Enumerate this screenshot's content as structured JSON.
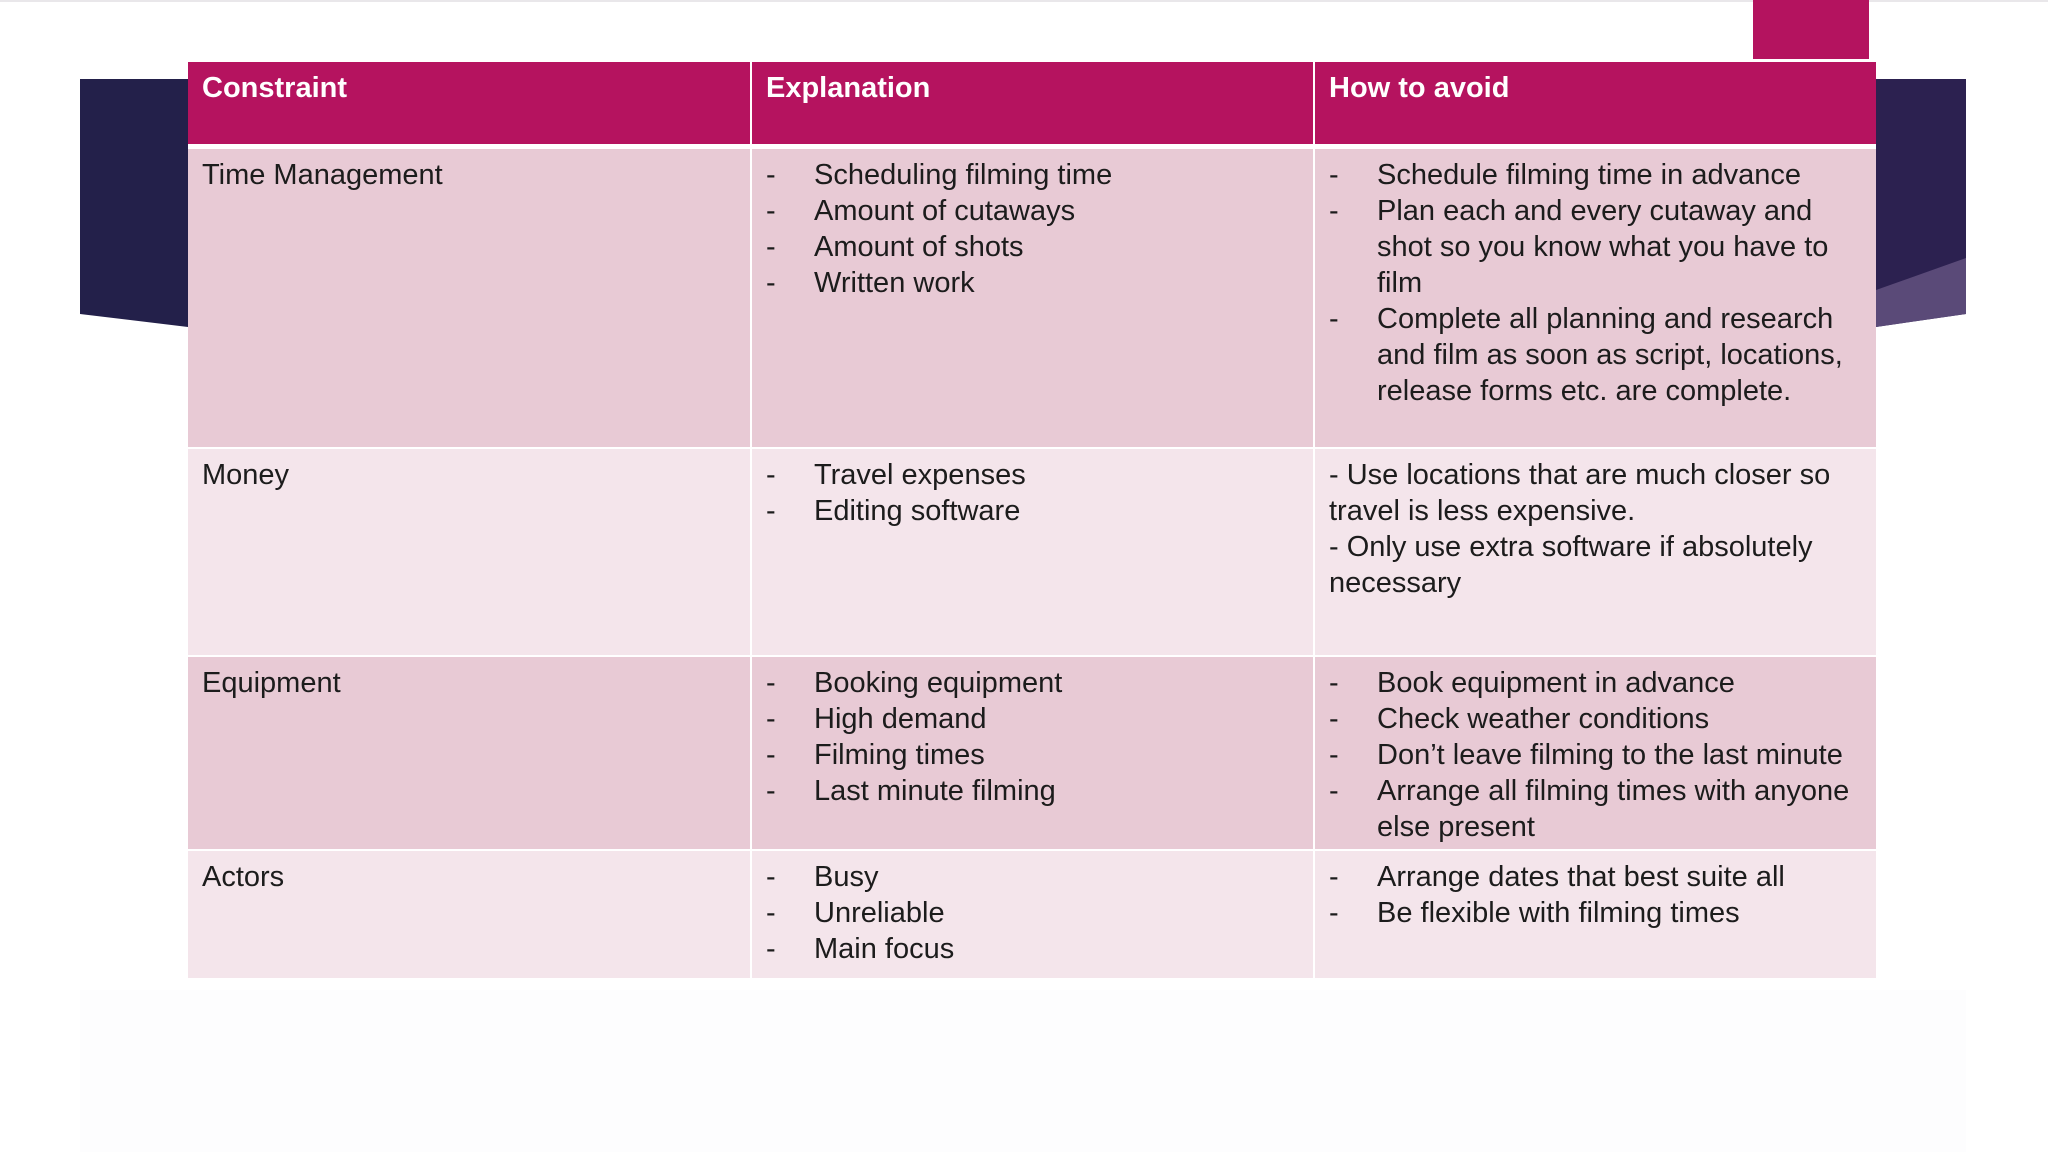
{
  "colors": {
    "header_bg": "#b5135f",
    "row_odd_bg": "#e8cad5",
    "row_even_bg": "#f4e5eb",
    "accent_tab": "#b4135f",
    "deco_dark": "#23204a",
    "deco_purple": "#3a2456"
  },
  "table": {
    "headers": [
      "Constraint",
      "Explanation",
      "How to avoid"
    ],
    "rows": [
      {
        "constraint": "Time Management",
        "explanation": [
          "Scheduling filming time",
          "Amount of cutaways",
          "Amount of shots",
          "Written work"
        ],
        "avoid": [
          "Schedule filming time in advance",
          "Plan each and every cutaway and shot so you know what you have to film",
          "Complete all planning and research and film as soon as script, locations, release forms etc. are complete."
        ]
      },
      {
        "constraint": "Money",
        "explanation": [
          "Travel expenses",
          "Editing software"
        ],
        "avoid_plain": [
          "- Use locations that are much closer so travel is less expensive.",
          "- Only use extra software if absolutely necessary"
        ]
      },
      {
        "constraint": "Equipment",
        "explanation": [
          "Booking equipment",
          "High demand",
          "Filming times",
          "Last minute filming"
        ],
        "avoid": [
          "Book equipment in advance",
          "Check weather conditions",
          "Don’t leave filming to the last minute",
          "Arrange all filming times with anyone else present"
        ]
      },
      {
        "constraint": "Actors",
        "explanation": [
          "Busy",
          "Unreliable",
          "Main focus"
        ],
        "avoid": [
          "Arrange dates that best suite all",
          "Be flexible with filming times"
        ]
      }
    ],
    "dash": "-"
  }
}
